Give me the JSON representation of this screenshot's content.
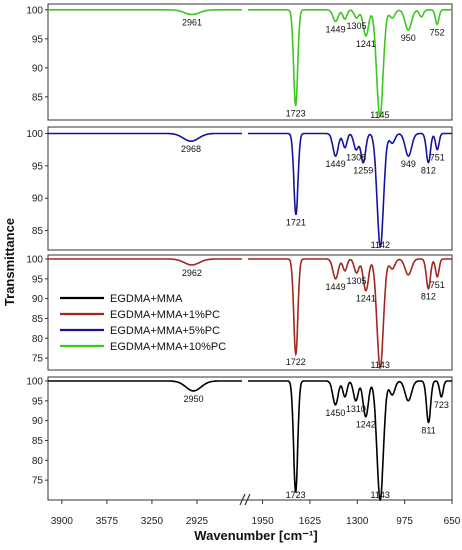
{
  "chart_data": {
    "type": "line",
    "xlabel": "Wavenumber [cm⁻¹]",
    "ylabel": "Transmittance",
    "x_ticks": [
      3900,
      3575,
      3250,
      2925,
      1950,
      1625,
      1300,
      975,
      650
    ],
    "axis_break_between": [
      2925,
      1950
    ],
    "xlim": [
      650,
      4000
    ],
    "legend": [
      {
        "name": "EGDMA+MMA",
        "color": "#000000"
      },
      {
        "name": "EGDMA+MMA+1%PC",
        "color": "#a0281e"
      },
      {
        "name": "EGDMA+MMA+5%PC",
        "color": "#1414a0"
      },
      {
        "name": "EGDMA+MMA+10%PC",
        "color": "#3cc81e"
      }
    ],
    "legend_position": "inside third panel, left",
    "panels": [
      {
        "series": "EGDMA+MMA+10%PC",
        "color": "#3cc81e",
        "ylim": [
          81,
          101
        ],
        "y_ticks": [
          100,
          95,
          90,
          85
        ],
        "baseline": 100,
        "peaks": [
          {
            "x": 2961,
            "y": 99.2,
            "w": 55,
            "label": "2961"
          },
          {
            "x": 1723,
            "y": 83.5,
            "w": 14,
            "label": "1723"
          },
          {
            "x": 1449,
            "y": 98.0,
            "w": 18,
            "label": "1449"
          },
          {
            "x": 1385,
            "y": 98.4,
            "w": 14,
            "label": ""
          },
          {
            "x": 1305,
            "y": 98.6,
            "w": 16,
            "label": "1305"
          },
          {
            "x": 1241,
            "y": 95.5,
            "w": 18,
            "label": "1241"
          },
          {
            "x": 1145,
            "y": 81.5,
            "w": 22,
            "label": "1145"
          },
          {
            "x": 1060,
            "y": 98.6,
            "w": 18,
            "label": ""
          },
          {
            "x": 950,
            "y": 96.5,
            "w": 22,
            "label": "950"
          },
          {
            "x": 860,
            "y": 98.8,
            "w": 14,
            "label": ""
          },
          {
            "x": 752,
            "y": 97.5,
            "w": 12,
            "label": "752"
          }
        ]
      },
      {
        "series": "EGDMA+MMA+5%PC",
        "color": "#1414a0",
        "ylim": [
          82,
          101
        ],
        "y_ticks": [
          100,
          95,
          90,
          85
        ],
        "baseline": 100,
        "peaks": [
          {
            "x": 2968,
            "y": 98.8,
            "w": 55,
            "label": "2968"
          },
          {
            "x": 1721,
            "y": 87.5,
            "w": 14,
            "label": "1721"
          },
          {
            "x": 1449,
            "y": 96.5,
            "w": 18,
            "label": "1449"
          },
          {
            "x": 1385,
            "y": 97.8,
            "w": 14,
            "label": ""
          },
          {
            "x": 1308,
            "y": 97.5,
            "w": 16,
            "label": "1308"
          },
          {
            "x": 1259,
            "y": 95.5,
            "w": 16,
            "label": "1259"
          },
          {
            "x": 1142,
            "y": 82.5,
            "w": 22,
            "label": "1142"
          },
          {
            "x": 1060,
            "y": 98.5,
            "w": 18,
            "label": ""
          },
          {
            "x": 949,
            "y": 96.5,
            "w": 22,
            "label": "949"
          },
          {
            "x": 812,
            "y": 95.5,
            "w": 14,
            "label": "812"
          },
          {
            "x": 751,
            "y": 97.5,
            "w": 12,
            "label": "751"
          }
        ]
      },
      {
        "series": "EGDMA+MMA+1%PC",
        "color": "#a0281e",
        "ylim": [
          72,
          101
        ],
        "y_ticks": [
          100,
          95,
          90,
          85,
          80,
          75
        ],
        "baseline": 100,
        "peaks": [
          {
            "x": 2962,
            "y": 98.5,
            "w": 55,
            "label": "2962"
          },
          {
            "x": 1722,
            "y": 76.0,
            "w": 14,
            "label": "1722"
          },
          {
            "x": 1449,
            "y": 95.0,
            "w": 18,
            "label": "1449"
          },
          {
            "x": 1385,
            "y": 97.0,
            "w": 14,
            "label": ""
          },
          {
            "x": 1305,
            "y": 96.5,
            "w": 16,
            "label": "1305"
          },
          {
            "x": 1241,
            "y": 92.0,
            "w": 18,
            "label": "1241"
          },
          {
            "x": 1143,
            "y": 72.5,
            "w": 22,
            "label": "1143"
          },
          {
            "x": 1060,
            "y": 97.5,
            "w": 18,
            "label": ""
          },
          {
            "x": 950,
            "y": 96.0,
            "w": 22,
            "label": ""
          },
          {
            "x": 812,
            "y": 92.5,
            "w": 14,
            "label": "812"
          },
          {
            "x": 751,
            "y": 95.5,
            "w": 12,
            "label": "751"
          }
        ]
      },
      {
        "series": "EGDMA+MMA",
        "color": "#000000",
        "ylim": [
          70,
          101
        ],
        "y_ticks": [
          100,
          95,
          90,
          85,
          80,
          75
        ],
        "baseline": 100,
        "peaks": [
          {
            "x": 2950,
            "y": 97.5,
            "w": 55,
            "label": "2950"
          },
          {
            "x": 1723,
            "y": 72.0,
            "w": 14,
            "label": "1723"
          },
          {
            "x": 1450,
            "y": 94.0,
            "w": 18,
            "label": "1450"
          },
          {
            "x": 1385,
            "y": 96.0,
            "w": 14,
            "label": ""
          },
          {
            "x": 1310,
            "y": 95.0,
            "w": 16,
            "label": "1310"
          },
          {
            "x": 1242,
            "y": 91.0,
            "w": 18,
            "label": "1242"
          },
          {
            "x": 1143,
            "y": 70.0,
            "w": 22,
            "label": "1143"
          },
          {
            "x": 1060,
            "y": 96.5,
            "w": 18,
            "label": ""
          },
          {
            "x": 950,
            "y": 95.0,
            "w": 22,
            "label": ""
          },
          {
            "x": 811,
            "y": 89.5,
            "w": 14,
            "label": "811"
          },
          {
            "x": 723,
            "y": 96.0,
            "w": 12,
            "label": "723"
          }
        ]
      }
    ]
  }
}
